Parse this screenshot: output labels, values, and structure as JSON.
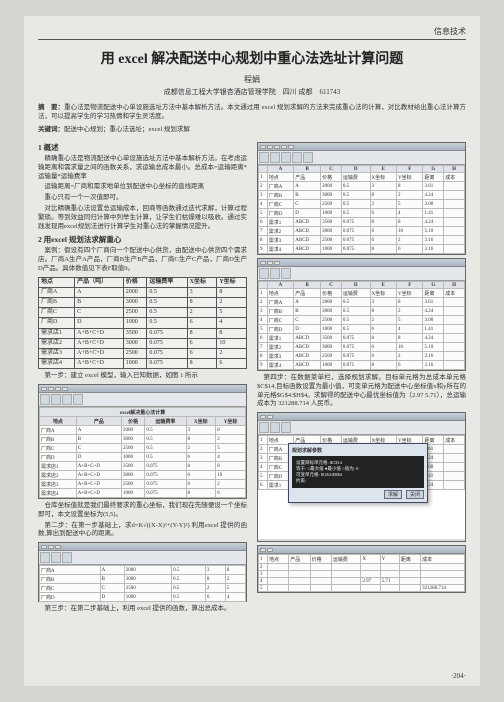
{
  "header": {
    "category": "信息技术"
  },
  "title": "用 excel 解决配送中心规划中重心法选址计算问题",
  "author": "程娟",
  "affiliation": "成都信息工程大学银杏酒店管理学院　四川 成都　611743",
  "abstract_label": "摘　要：",
  "abstract_text": "重心法是物流配送中心单设施选址方法中基本解析方法。本文通过用 excel 规划求解的方法来完成重心法的计算，对比教材给出重心法计算方法，可以提高学生的学习热情和学生灵活度。",
  "keywords_label": "关键词：",
  "keywords_text": "配送中心规划；重心法选址；excel 规划求解",
  "sec1_title": "1 概述",
  "sec1_p1": "精确重心法是物流配送中心单设施选址方法中基本解析方法。在考虑运输距离和需求量之间的函数关系，求运输总成本最小。总成本=运输距离*运输量*运输费率",
  "sec1_p2": "运输距离=厂商和需求地单位到配送中心坐标的直线距离",
  "sec1_p3": "重心只有一个一次值即可。",
  "sec1_p4": "对比精确重心法设置总运输成本，回商等函数通过迭代求解，计算过程繁琐。等到效益同归计算中列举生计算，让学生们枯燥难以吸收。通过实践发现用excel规划法进行计算学生对重心法的掌握情况提升。",
  "sec2_title": "2 用excel 规划法求解重心",
  "sec2_p1": "案例：假设有四个厂商向一个配送中心供货，由配送中心供货四个需求店。厂商A生产A产品，厂商B生产B产品，厂商C生产C产品，厂商D生产D产品。具体数值见下表F取值9。",
  "case_table": {
    "columns": [
      "地点",
      "产品（吨）",
      "价格",
      "运输费率",
      "X坐标",
      "Y坐标"
    ],
    "rows": [
      [
        "厂商A",
        "A",
        "2000",
        "0.5",
        "3",
        "8"
      ],
      [
        "厂商B",
        "B",
        "3000",
        "0.5",
        "8",
        "2"
      ],
      [
        "厂商C",
        "C",
        "2500",
        "0.5",
        "2",
        "5"
      ],
      [
        "厂商D",
        "D",
        "1000",
        "0.5",
        "6",
        "4"
      ],
      [
        "需求店1",
        "A+B+C+D",
        "3500",
        "0.075",
        "8",
        "8"
      ],
      [
        "需求店2",
        "A+B+C+D",
        "3000",
        "0.075",
        "6",
        "10"
      ],
      [
        "需求店3",
        "A+B+C+D",
        "2500",
        "0.075",
        "6",
        "2"
      ],
      [
        "需求店4",
        "A+B+C+D",
        "1000",
        "0.075",
        "8",
        "6"
      ]
    ]
  },
  "step1": "第一步：建立 excel 模型，输入已知数据，如图 1 所示",
  "ss1_title": "excel解决重心法计算",
  "ss1_cols": [
    "地点",
    "产品",
    "价格",
    "运输费率",
    "X坐标",
    "Y坐标"
  ],
  "ss1_rows": [
    [
      "厂商A",
      "A",
      "2000",
      "0.5",
      "3",
      "8"
    ],
    [
      "厂商B",
      "B",
      "3000",
      "0.5",
      "8",
      "2"
    ],
    [
      "厂商C",
      "C",
      "2500",
      "0.5",
      "2",
      "5"
    ],
    [
      "厂商D",
      "D",
      "1000",
      "0.5",
      "6",
      "4"
    ],
    [
      "需求店1",
      "A+B+C+D",
      "3500",
      "0.075",
      "8",
      "8"
    ],
    [
      "需求店2",
      "A+B+C+D",
      "3000",
      "0.075",
      "6",
      "10"
    ],
    [
      "需求店3",
      "A+B+C+D",
      "2500",
      "0.075",
      "6",
      "2"
    ],
    [
      "需求店4",
      "A+B+C+D",
      "1000",
      "0.075",
      "8",
      "6"
    ]
  ],
  "step1b": "仓库坐标值就是我们最终要求的重心坐标，我们现在先随便设一个坐标即可，本文设置坐标为(5,5)。",
  "step2": "第二步：在第一步基础上，求d=K√((X-X)²+(Y-Y)²) 利用excel 提供的函数,算出到配送中心的距离。",
  "step3": "第三步：在第二步基础上，利用 excel 提供的函数，算出总成本。",
  "right_ss_cols": [
    "",
    "A",
    "B",
    "C",
    "D",
    "E",
    "F",
    "G",
    "H"
  ],
  "right_rows1": [
    [
      "1",
      "地点",
      "产品",
      "价格",
      "运输费",
      "X坐标",
      "Y坐标",
      "距离",
      "成本"
    ],
    [
      "2",
      "厂商A",
      "A",
      "2000",
      "0.5",
      "3",
      "8",
      "3.61",
      ""
    ],
    [
      "3",
      "厂商B",
      "B",
      "3000",
      "0.5",
      "8",
      "2",
      "4.24",
      ""
    ],
    [
      "4",
      "厂商C",
      "C",
      "2500",
      "0.5",
      "2",
      "5",
      "3.00",
      ""
    ],
    [
      "5",
      "厂商D",
      "D",
      "1000",
      "0.5",
      "6",
      "4",
      "1.41",
      ""
    ],
    [
      "6",
      "需求1",
      "ABCD",
      "3500",
      "0.075",
      "8",
      "8",
      "4.24",
      ""
    ],
    [
      "7",
      "需求2",
      "ABCD",
      "3000",
      "0.075",
      "6",
      "10",
      "5.10",
      ""
    ],
    [
      "8",
      "需求3",
      "ABCD",
      "2500",
      "0.075",
      "6",
      "2",
      "3.16",
      ""
    ],
    [
      "9",
      "需求4",
      "ABCD",
      "1000",
      "0.075",
      "8",
      "6",
      "3.16",
      ""
    ]
  ],
  "step4": "第四步：在数据菜单栏，选择规划求解。目标单元格为总成本单元格$C$14,目标函数设置为最小值，可变单元格为配送中心坐标值x和y所在的单元格$G$4:$H$4。求解得的配送中心最优坐标值为（2.97  5.71），总运输成本为 321288.714 人民币。",
  "dialog": {
    "title": "规划求解参数",
    "line1": "设置目标单元格: $C$14",
    "line2": "等于: ○最大值 ●最小值 ○值为: 0",
    "line3": "可变单元格: $G$4:$H$4",
    "line4": "约束:",
    "btn_solve": "求解",
    "btn_close": "关闭"
  },
  "footer_rows": [
    [
      "1",
      "地点",
      "产品",
      "价格",
      "运输费",
      "X",
      "Y",
      "距离",
      "成本"
    ],
    [
      "2",
      "",
      "",
      "",
      "",
      "",
      "",
      "",
      ""
    ],
    [
      "3",
      "",
      "",
      "",
      "",
      "",
      "",
      "",
      ""
    ],
    [
      "4",
      "",
      "",
      "",
      "",
      "2.97",
      "5.71",
      "",
      ""
    ],
    [
      "5",
      "",
      "",
      "",
      "",
      "",
      "",
      "",
      "321288.714"
    ]
  ],
  "page_num": "·204·"
}
